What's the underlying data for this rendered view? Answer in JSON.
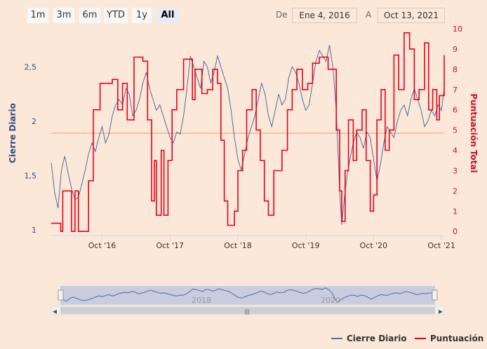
{
  "range_selector": {
    "buttons": [
      "1m",
      "3m",
      "6m",
      "YTD",
      "1y",
      "All"
    ],
    "active": "All",
    "from_label": "De",
    "from_value": "Ene 4, 2016",
    "to_label": "A",
    "to_value": "Oct 13, 2021"
  },
  "navigator": {
    "labels": [
      "2018",
      "2020"
    ]
  },
  "legend": {
    "items": [
      {
        "name": "Cierre Diario",
        "color": "#4a6fa5"
      },
      {
        "name": "Puntuación",
        "color": "#e8001c"
      }
    ]
  },
  "colors": {
    "background": "#fce8d8",
    "price": "#4a6fa5",
    "score": "#e8001c",
    "plot_line": "#f0b48c",
    "navigator_mask": "#c8cde0"
  },
  "chart_data": {
    "type": "line",
    "title": "",
    "x_range": [
      2016.0,
      2021.79
    ],
    "x_ticks": [
      {
        "label": "Oct '16",
        "value": 2016.75
      },
      {
        "label": "Oct '17",
        "value": 2017.75
      },
      {
        "label": "Oct '18",
        "value": 2018.75
      },
      {
        "label": "Oct '19",
        "value": 2019.75
      },
      {
        "label": "Oct '20",
        "value": 2020.75
      },
      {
        "label": "Oct '21",
        "value": 2021.75
      }
    ],
    "y_left": {
      "label": "Cierre Diario",
      "range": [
        0.95,
        2.85
      ],
      "ticks": [
        {
          "label": "1",
          "value": 1
        },
        {
          "label": "1,5",
          "value": 1.5
        },
        {
          "label": "2",
          "value": 2
        },
        {
          "label": "2,5",
          "value": 2.5
        }
      ]
    },
    "y_right": {
      "label": "Puntuación Total",
      "range": [
        -0.2,
        10
      ],
      "ticks": [
        0,
        1,
        2,
        3,
        4,
        5,
        6,
        7,
        8,
        9,
        10
      ]
    },
    "plot_line": {
      "axis": "left",
      "value": 1.89
    },
    "series": [
      {
        "name": "Cierre Diario",
        "axis": "left",
        "points": [
          [
            2016.0,
            1.62
          ],
          [
            2016.05,
            1.35
          ],
          [
            2016.1,
            1.2
          ],
          [
            2016.15,
            1.55
          ],
          [
            2016.2,
            1.68
          ],
          [
            2016.25,
            1.52
          ],
          [
            2016.3,
            1.38
          ],
          [
            2016.35,
            1.28
          ],
          [
            2016.4,
            1.3
          ],
          [
            2016.45,
            1.42
          ],
          [
            2016.5,
            1.55
          ],
          [
            2016.55,
            1.7
          ],
          [
            2016.6,
            1.8
          ],
          [
            2016.65,
            1.72
          ],
          [
            2016.7,
            1.85
          ],
          [
            2016.75,
            1.95
          ],
          [
            2016.8,
            1.8
          ],
          [
            2016.85,
            1.88
          ],
          [
            2016.9,
            2.05
          ],
          [
            2016.95,
            2.15
          ],
          [
            2017.0,
            2.2
          ],
          [
            2017.05,
            2.15
          ],
          [
            2017.1,
            2.3
          ],
          [
            2017.15,
            2.25
          ],
          [
            2017.2,
            2.05
          ],
          [
            2017.25,
            2.1
          ],
          [
            2017.3,
            2.2
          ],
          [
            2017.35,
            2.35
          ],
          [
            2017.4,
            2.45
          ],
          [
            2017.45,
            2.3
          ],
          [
            2017.5,
            2.2
          ],
          [
            2017.55,
            2.1
          ],
          [
            2017.6,
            2.15
          ],
          [
            2017.65,
            2.05
          ],
          [
            2017.7,
            1.95
          ],
          [
            2017.75,
            1.85
          ],
          [
            2017.8,
            1.8
          ],
          [
            2017.85,
            1.9
          ],
          [
            2017.9,
            1.88
          ],
          [
            2017.95,
            2.05
          ],
          [
            2018.0,
            2.3
          ],
          [
            2018.05,
            2.6
          ],
          [
            2018.1,
            2.5
          ],
          [
            2018.15,
            2.4
          ],
          [
            2018.2,
            2.3
          ],
          [
            2018.25,
            2.55
          ],
          [
            2018.3,
            2.5
          ],
          [
            2018.35,
            2.35
          ],
          [
            2018.4,
            2.45
          ],
          [
            2018.45,
            2.6
          ],
          [
            2018.5,
            2.5
          ],
          [
            2018.55,
            2.4
          ],
          [
            2018.6,
            2.3
          ],
          [
            2018.65,
            2.1
          ],
          [
            2018.7,
            1.85
          ],
          [
            2018.75,
            1.65
          ],
          [
            2018.8,
            1.55
          ],
          [
            2018.85,
            1.7
          ],
          [
            2018.9,
            1.85
          ],
          [
            2018.95,
            1.95
          ],
          [
            2019.0,
            2.05
          ],
          [
            2019.05,
            2.2
          ],
          [
            2019.1,
            2.35
          ],
          [
            2019.15,
            2.25
          ],
          [
            2019.2,
            2.05
          ],
          [
            2019.25,
            1.95
          ],
          [
            2019.3,
            2.1
          ],
          [
            2019.35,
            2.25
          ],
          [
            2019.4,
            2.15
          ],
          [
            2019.45,
            2.2
          ],
          [
            2019.5,
            2.4
          ],
          [
            2019.55,
            2.5
          ],
          [
            2019.6,
            2.45
          ],
          [
            2019.65,
            2.35
          ],
          [
            2019.7,
            2.2
          ],
          [
            2019.75,
            2.1
          ],
          [
            2019.8,
            2.15
          ],
          [
            2019.85,
            2.35
          ],
          [
            2019.9,
            2.55
          ],
          [
            2019.95,
            2.65
          ],
          [
            2020.0,
            2.6
          ],
          [
            2020.05,
            2.55
          ],
          [
            2020.1,
            2.7
          ],
          [
            2020.15,
            2.5
          ],
          [
            2020.2,
            2.1
          ],
          [
            2020.25,
            1.35
          ],
          [
            2020.28,
            1.05
          ],
          [
            2020.32,
            1.3
          ],
          [
            2020.36,
            1.5
          ],
          [
            2020.4,
            1.65
          ],
          [
            2020.45,
            1.8
          ],
          [
            2020.5,
            1.9
          ],
          [
            2020.55,
            1.85
          ],
          [
            2020.6,
            1.75
          ],
          [
            2020.65,
            1.9
          ],
          [
            2020.7,
            1.85
          ],
          [
            2020.75,
            1.65
          ],
          [
            2020.8,
            1.45
          ],
          [
            2020.85,
            1.6
          ],
          [
            2020.9,
            1.8
          ],
          [
            2020.95,
            1.95
          ],
          [
            2021.0,
            1.9
          ],
          [
            2021.05,
            1.85
          ],
          [
            2021.1,
            2.0
          ],
          [
            2021.15,
            2.1
          ],
          [
            2021.2,
            2.15
          ],
          [
            2021.25,
            2.05
          ],
          [
            2021.3,
            2.2
          ],
          [
            2021.35,
            2.3
          ],
          [
            2021.4,
            2.2
          ],
          [
            2021.45,
            2.1
          ],
          [
            2021.5,
            1.95
          ],
          [
            2021.55,
            2.0
          ],
          [
            2021.6,
            2.1
          ],
          [
            2021.65,
            2.05
          ],
          [
            2021.7,
            2.15
          ],
          [
            2021.75,
            2.1
          ],
          [
            2021.79,
            2.3
          ]
        ]
      },
      {
        "name": "Puntuación",
        "axis": "right",
        "step": true,
        "points": [
          [
            2016.0,
            0.4
          ],
          [
            2016.14,
            0
          ],
          [
            2016.17,
            2
          ],
          [
            2016.3,
            0
          ],
          [
            2016.35,
            2
          ],
          [
            2016.4,
            0
          ],
          [
            2016.55,
            2.5
          ],
          [
            2016.62,
            6
          ],
          [
            2016.72,
            7.3
          ],
          [
            2016.9,
            7.5
          ],
          [
            2016.98,
            6
          ],
          [
            2017.05,
            7.3
          ],
          [
            2017.12,
            5.5
          ],
          [
            2017.22,
            8.6
          ],
          [
            2017.35,
            8.4
          ],
          [
            2017.42,
            5.5
          ],
          [
            2017.48,
            1.5
          ],
          [
            2017.52,
            3.5
          ],
          [
            2017.55,
            0.8
          ],
          [
            2017.62,
            4
          ],
          [
            2017.66,
            0.8
          ],
          [
            2017.72,
            3.5
          ],
          [
            2017.78,
            6
          ],
          [
            2017.85,
            7
          ],
          [
            2017.95,
            8.5
          ],
          [
            2018.08,
            6.5
          ],
          [
            2018.12,
            8
          ],
          [
            2018.22,
            6.8
          ],
          [
            2018.3,
            7
          ],
          [
            2018.38,
            8
          ],
          [
            2018.45,
            7.3
          ],
          [
            2018.5,
            4.5
          ],
          [
            2018.55,
            1.5
          ],
          [
            2018.6,
            0.3
          ],
          [
            2018.7,
            1
          ],
          [
            2018.75,
            3
          ],
          [
            2018.82,
            4
          ],
          [
            2018.88,
            6
          ],
          [
            2018.96,
            7
          ],
          [
            2019.02,
            5
          ],
          [
            2019.08,
            3.5
          ],
          [
            2019.14,
            1.5
          ],
          [
            2019.2,
            0.8
          ],
          [
            2019.28,
            3
          ],
          [
            2019.4,
            4
          ],
          [
            2019.48,
            6
          ],
          [
            2019.55,
            7
          ],
          [
            2019.62,
            8
          ],
          [
            2019.7,
            7
          ],
          [
            2019.78,
            7.3
          ],
          [
            2019.85,
            8.3
          ],
          [
            2019.95,
            8.6
          ],
          [
            2020.08,
            8
          ],
          [
            2020.2,
            5
          ],
          [
            2020.25,
            2
          ],
          [
            2020.28,
            0.5
          ],
          [
            2020.33,
            3
          ],
          [
            2020.38,
            5.5
          ],
          [
            2020.45,
            3.5
          ],
          [
            2020.5,
            5
          ],
          [
            2020.58,
            6
          ],
          [
            2020.64,
            3.5
          ],
          [
            2020.7,
            1
          ],
          [
            2020.75,
            1.8
          ],
          [
            2020.8,
            5.5
          ],
          [
            2020.86,
            7
          ],
          [
            2020.92,
            4
          ],
          [
            2020.98,
            5
          ],
          [
            2021.05,
            8.7
          ],
          [
            2021.12,
            7
          ],
          [
            2021.2,
            9.8
          ],
          [
            2021.28,
            9
          ],
          [
            2021.35,
            6.5
          ],
          [
            2021.42,
            7
          ],
          [
            2021.5,
            9.3
          ],
          [
            2021.56,
            6
          ],
          [
            2021.62,
            7
          ],
          [
            2021.68,
            5.5
          ],
          [
            2021.72,
            6.7
          ],
          [
            2021.79,
            8.7
          ]
        ]
      }
    ]
  }
}
